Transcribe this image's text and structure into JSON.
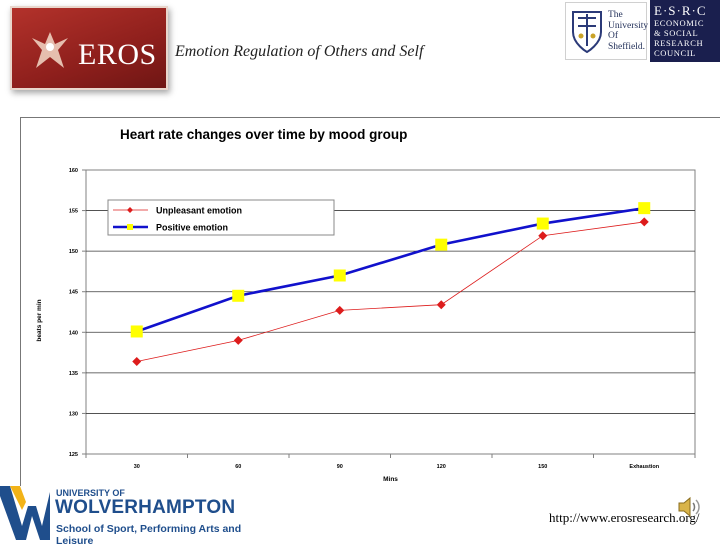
{
  "header": {
    "logo_text": "EROS",
    "subtitle": "Emotion Regulation of Others and Self"
  },
  "partners": {
    "sheffield": [
      "The",
      "University",
      "Of",
      "Sheffield."
    ],
    "esrc_code": "E·S·R·C",
    "esrc_lines": [
      "ECONOMIC",
      "& SOCIAL",
      "RESEARCH",
      "COUNCIL"
    ]
  },
  "footer": {
    "wolves_line1": "UNIVERSITY OF",
    "wolves_line2": "WOLVERHAMPTON",
    "wolves_line3": "School of Sport, Performing Arts and Leisure",
    "url": "http://www.erosresearch.org/"
  },
  "colors": {
    "unpleasant": "#dd1c1c",
    "positive": "#1111cc",
    "positive_marker": "#ffff00",
    "plot_bg": "#ffffff"
  },
  "chart_data": {
    "type": "line",
    "title": "Heart rate changes over time by mood group",
    "xlabel": "Mins",
    "ylabel": "beats per min",
    "categories": [
      "30",
      "60",
      "90",
      "120",
      "150",
      "Exhaustion"
    ],
    "ylim": [
      125,
      160
    ],
    "yticks": [
      125,
      130,
      135,
      140,
      145,
      150,
      155,
      160
    ],
    "grid": true,
    "legend_position": "top-left",
    "series": [
      {
        "name": "Unpleasant emotion",
        "values": [
          136.4,
          139.0,
          142.7,
          143.4,
          151.9,
          153.6
        ]
      },
      {
        "name": "Positive emotion",
        "values": [
          140.1,
          144.5,
          147.0,
          150.8,
          153.4,
          155.3
        ]
      }
    ]
  }
}
